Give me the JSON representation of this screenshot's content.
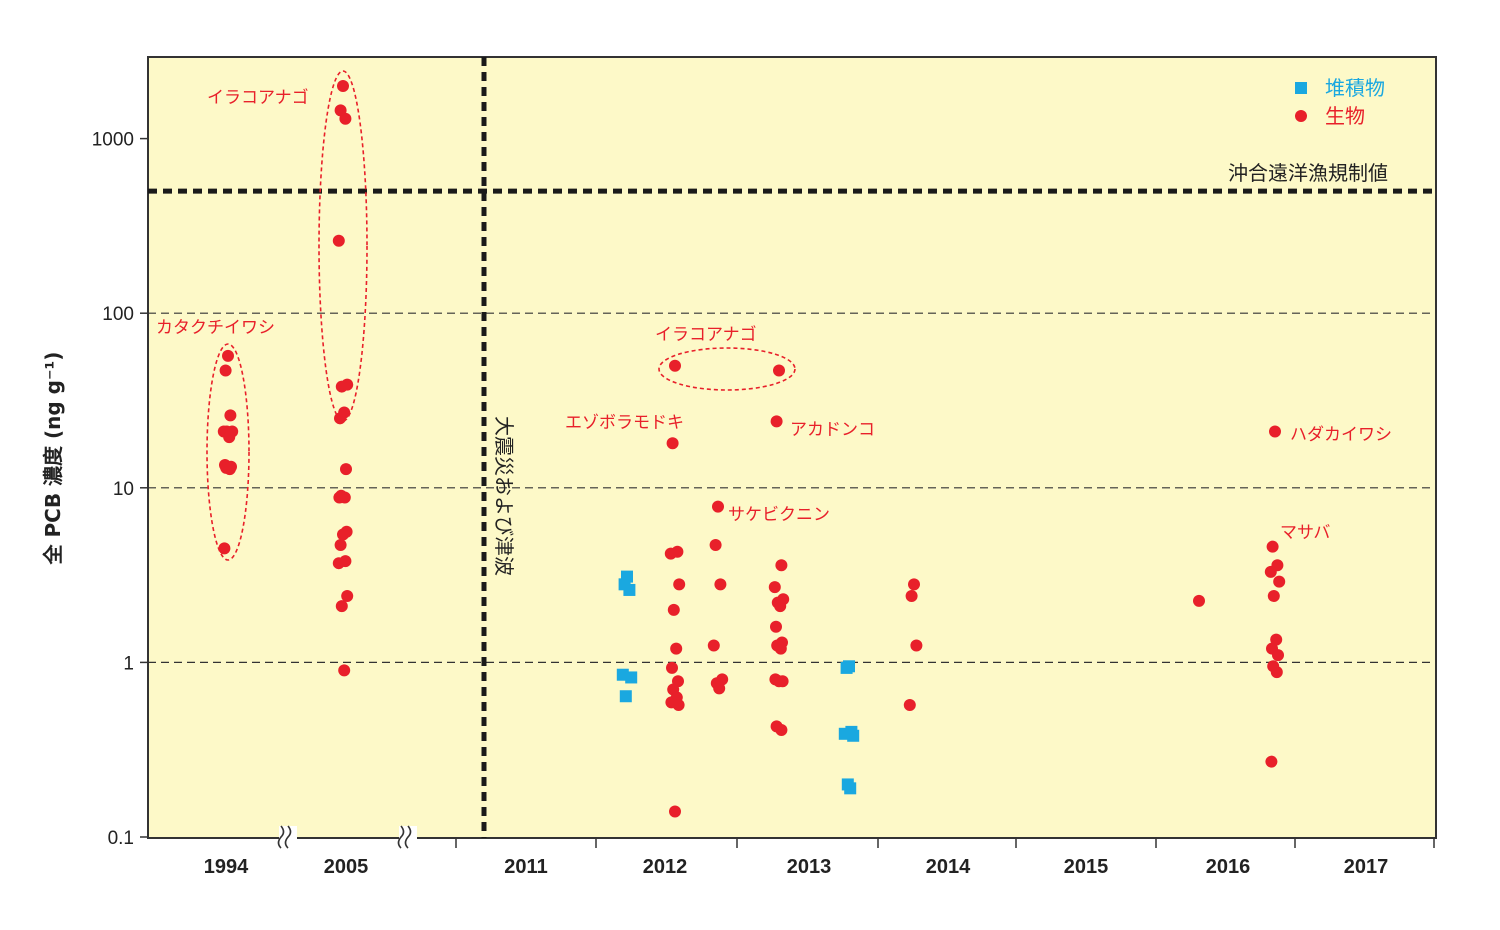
{
  "chart_data": {
    "type": "scatter",
    "title": "",
    "ylabel": "全 PCB 濃度 (ng g⁻¹)",
    "xlabel": "",
    "y_scale": "log",
    "ylim": [
      0.1,
      3000
    ],
    "y_ticks": [
      {
        "value": 0.1,
        "label": "0.1"
      },
      {
        "value": 1,
        "label": "1"
      },
      {
        "value": 10,
        "label": "10"
      },
      {
        "value": 100,
        "label": "100"
      },
      {
        "value": 1000,
        "label": "1000"
      }
    ],
    "grid": "horizontal dashed at 1, 10, 100",
    "year_labels": [
      "1994",
      "2005",
      "2011",
      "2012",
      "2013",
      "2014",
      "2015",
      "2016",
      "2017"
    ],
    "axis_breaks": [
      "between 1994 and 2005",
      "between 2005 and 2011"
    ],
    "legend": {
      "placement": "top-right",
      "entries": [
        {
          "label": "堆積物",
          "color": "#1aa8e0",
          "marker": "square"
        },
        {
          "label": "生物",
          "color": "#e8202a",
          "marker": "circle"
        }
      ]
    },
    "reference_lines": [
      {
        "orientation": "horizontal",
        "value": 500,
        "label": "沖合遠洋漁規制値"
      },
      {
        "orientation": "vertical",
        "at": "2011 (before)",
        "label": "大震災および津波"
      }
    ],
    "annotations": [
      {
        "text": "イラコアナゴ",
        "group": "2005"
      },
      {
        "text": "カタクチイワシ",
        "group": "1994"
      },
      {
        "text": "イラコアナゴ",
        "group": "2012-2013"
      },
      {
        "text": "エゾボラモドキ",
        "group": "2012"
      },
      {
        "text": "アカドンコ",
        "group": "2013"
      },
      {
        "text": "サケビクニン",
        "group": "2012"
      },
      {
        "text": "ハダカイワシ",
        "group": "2016"
      },
      {
        "text": "マサバ",
        "group": "2016"
      }
    ],
    "series": [
      {
        "name": "生物",
        "color": "#e8202a",
        "marker": "circle",
        "points": [
          {
            "x": "1994",
            "y": [
              57,
              47,
              26,
              21,
              21,
              21,
              19.5,
              13.5,
              13.2,
              13,
              12.8,
              4.5
            ]
          },
          {
            "x": "2005",
            "y": [
              2000,
              1450,
              1300,
              260,
              39,
              38,
              27,
              25,
              12.8,
              9,
              8.8,
              8.8,
              5.6,
              5.4,
              4.7,
              3.8,
              3.7,
              2.4,
              2.1,
              0.9
            ]
          },
          {
            "x": "2012 early",
            "y": [
              50,
              18,
              4.3,
              4.2,
              2.8,
              2.0,
              1.2,
              0.93,
              0.78,
              0.7,
              0.63,
              0.59,
              0.57,
              0.14
            ]
          },
          {
            "x": "2012 late",
            "y": [
              7.8,
              4.7,
              2.8,
              1.25,
              0.8,
              0.76,
              0.71
            ]
          },
          {
            "x": "2013 early",
            "y": [
              47,
              24,
              3.6,
              2.7,
              2.3,
              2.2,
              2.1,
              1.6,
              1.3,
              1.25,
              1.2,
              0.8,
              0.78,
              0.78,
              0.43,
              0.41
            ]
          },
          {
            "x": "2014",
            "y": [
              2.8,
              2.4,
              1.25,
              0.57
            ]
          },
          {
            "x": "2016 early",
            "y": [
              2.25
            ]
          },
          {
            "x": "2016 late",
            "y": [
              21,
              4.6,
              3.6,
              3.3,
              2.9,
              2.4,
              1.35,
              1.2,
              1.1,
              0.95,
              0.88,
              0.27
            ]
          }
        ]
      },
      {
        "name": "堆積物",
        "color": "#1aa8e0",
        "marker": "square",
        "points": [
          {
            "x": "2011 late",
            "y": [
              3.1,
              2.8,
              2.6,
              0.85,
              0.82,
              0.64
            ]
          },
          {
            "x": "2013 late",
            "y": [
              0.95,
              0.93,
              0.4,
              0.39,
              0.38,
              0.2,
              0.19
            ]
          }
        ]
      }
    ]
  }
}
